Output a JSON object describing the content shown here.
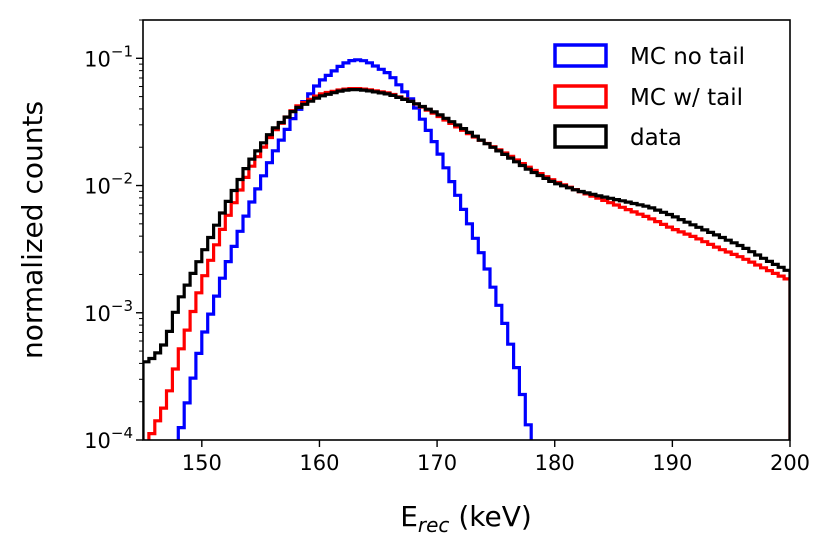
{
  "chart_data": {
    "type": "line",
    "style": "step histogram",
    "xlabel_main": "E",
    "xlabel_sub": "rec",
    "xlabel_unit": " (keV)",
    "ylabel": "normalized counts",
    "yscale": "log",
    "xlim": [
      145,
      200
    ],
    "ylim": [
      0.0001,
      0.2
    ],
    "x_ticks": [
      150,
      160,
      170,
      180,
      190,
      200
    ],
    "x_tick_labels": [
      "150",
      "160",
      "170",
      "180",
      "190",
      "200"
    ],
    "y_ticks": [
      {
        "value": 0.1,
        "base": "10",
        "exp": "−1"
      },
      {
        "value": 0.01,
        "base": "10",
        "exp": "−2"
      },
      {
        "value": 0.001,
        "base": "10",
        "exp": "−3"
      },
      {
        "value": 0.0001,
        "base": "10",
        "exp": "−4"
      }
    ],
    "legend_position": "top-right",
    "series": [
      {
        "name": "MC no tail",
        "color": "#0000ff",
        "edges": [
          145.7,
          200
        ],
        "points": [
          [
            148,
            0.0001
          ],
          [
            150,
            0.0006
          ],
          [
            152,
            0.0022
          ],
          [
            154,
            0.0066
          ],
          [
            156,
            0.017
          ],
          [
            158,
            0.037
          ],
          [
            160,
            0.065
          ],
          [
            162,
            0.09
          ],
          [
            163,
            0.098
          ],
          [
            164,
            0.095
          ],
          [
            166,
            0.075
          ],
          [
            168,
            0.045
          ],
          [
            170,
            0.02
          ],
          [
            172,
            0.0074
          ],
          [
            174,
            0.0026
          ],
          [
            176,
            0.0007
          ],
          [
            177,
            0.0003
          ],
          [
            178,
            0.0001
          ]
        ]
      },
      {
        "name": "MC w/ tail",
        "color": "#ff0000",
        "points": [
          [
            145.5,
            0.0001
          ],
          [
            147,
            0.0002
          ],
          [
            148,
            0.00044
          ],
          [
            150,
            0.0017
          ],
          [
            152,
            0.0052
          ],
          [
            154,
            0.013
          ],
          [
            156,
            0.026
          ],
          [
            158,
            0.041
          ],
          [
            160,
            0.052
          ],
          [
            162,
            0.057
          ],
          [
            163,
            0.058
          ],
          [
            164,
            0.057
          ],
          [
            166,
            0.053
          ],
          [
            168,
            0.045
          ],
          [
            170,
            0.036
          ],
          [
            172,
            0.028
          ],
          [
            174,
            0.022
          ],
          [
            176,
            0.0175
          ],
          [
            178,
            0.0135
          ],
          [
            180,
            0.0108
          ],
          [
            182,
            0.0091
          ],
          [
            184,
            0.0078
          ],
          [
            186,
            0.0066
          ],
          [
            188,
            0.0056
          ],
          [
            190,
            0.0046
          ],
          [
            192,
            0.0039
          ],
          [
            194,
            0.0032
          ],
          [
            196,
            0.0027
          ],
          [
            198,
            0.0022
          ],
          [
            200,
            0.0018
          ]
        ]
      },
      {
        "name": "data",
        "color": "#000000",
        "points": [
          [
            145,
            0.0004
          ],
          [
            146,
            0.00045
          ],
          [
            147,
            0.0006
          ],
          [
            148,
            0.0012
          ],
          [
            150,
            0.0028
          ],
          [
            152,
            0.0068
          ],
          [
            154,
            0.015
          ],
          [
            156,
            0.027
          ],
          [
            158,
            0.04
          ],
          [
            160,
            0.05
          ],
          [
            162,
            0.056
          ],
          [
            163,
            0.057
          ],
          [
            164,
            0.056
          ],
          [
            166,
            0.052
          ],
          [
            168,
            0.045
          ],
          [
            170,
            0.037
          ],
          [
            172,
            0.029
          ],
          [
            174,
            0.022
          ],
          [
            176,
            0.017
          ],
          [
            178,
            0.013
          ],
          [
            180,
            0.0105
          ],
          [
            182,
            0.0091
          ],
          [
            184,
            0.0082
          ],
          [
            186,
            0.0075
          ],
          [
            188,
            0.0068
          ],
          [
            190,
            0.0058
          ],
          [
            192,
            0.0048
          ],
          [
            194,
            0.004
          ],
          [
            196,
            0.0033
          ],
          [
            198,
            0.0026
          ],
          [
            200,
            0.0021
          ]
        ]
      }
    ]
  }
}
